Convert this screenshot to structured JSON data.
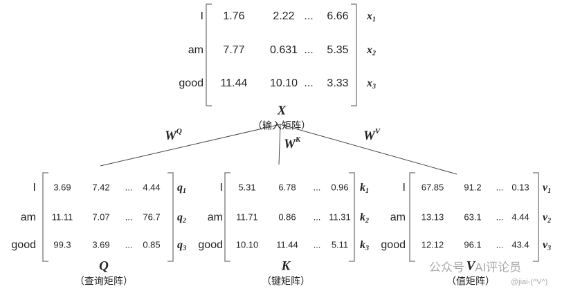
{
  "input": {
    "tokens": [
      "I",
      "am",
      "good"
    ],
    "rows": [
      [
        "1.76",
        "2.22",
        "...",
        "6.66"
      ],
      [
        "7.77",
        "0.631",
        "...",
        "5.35"
      ],
      [
        "11.44",
        "10.10",
        "...",
        "3.33"
      ]
    ],
    "vectors": [
      {
        "symbol": "x",
        "index": "1"
      },
      {
        "symbol": "x",
        "index": "2"
      },
      {
        "symbol": "x",
        "index": "3"
      }
    ],
    "name": "X",
    "caption": "（输入矩阵）"
  },
  "weights": [
    {
      "base": "W",
      "sup": "Q"
    },
    {
      "base": "W",
      "sup": "K"
    },
    {
      "base": "W",
      "sup": "V"
    }
  ],
  "outputs": [
    {
      "tokens": [
        "I",
        "am",
        "good"
      ],
      "rows": [
        [
          "3.69",
          "7.42",
          "...",
          "4.44"
        ],
        [
          "11.11",
          "7.07",
          "...",
          "76.7"
        ],
        [
          "99.3",
          "3.69",
          "...",
          "0.85"
        ]
      ],
      "vectors": [
        {
          "symbol": "q",
          "index": "1"
        },
        {
          "symbol": "q",
          "index": "2"
        },
        {
          "symbol": "q",
          "index": "3"
        }
      ],
      "name": "Q",
      "caption": "（查询矩阵）"
    },
    {
      "tokens": [
        "I",
        "am",
        "good"
      ],
      "rows": [
        [
          "5.31",
          "6.78",
          "...",
          "0.96"
        ],
        [
          "11.71",
          "0.86",
          "...",
          "11.31"
        ],
        [
          "10.10",
          "11.44",
          "...",
          "5.11"
        ]
      ],
      "vectors": [
        {
          "symbol": "k",
          "index": "1"
        },
        {
          "symbol": "k",
          "index": "2"
        },
        {
          "symbol": "k",
          "index": "3"
        }
      ],
      "name": "K",
      "caption": "（键矩阵）"
    },
    {
      "tokens": [
        "I",
        "am",
        "good"
      ],
      "rows": [
        [
          "67.85",
          "91.2",
          "...",
          "0.13"
        ],
        [
          "13.13",
          "63.1",
          "...",
          "4.44"
        ],
        [
          "12.12",
          "96.1",
          "...",
          "43.4"
        ]
      ],
      "vectors": [
        {
          "symbol": "v",
          "index": "1"
        },
        {
          "symbol": "v",
          "index": "2"
        },
        {
          "symbol": "v",
          "index": "3"
        }
      ],
      "name": "V",
      "caption": "（值矩阵）"
    }
  ],
  "watermark": {
    "account": "公众号 · AI评论员",
    "handle": "@jiai-(^V^)"
  }
}
